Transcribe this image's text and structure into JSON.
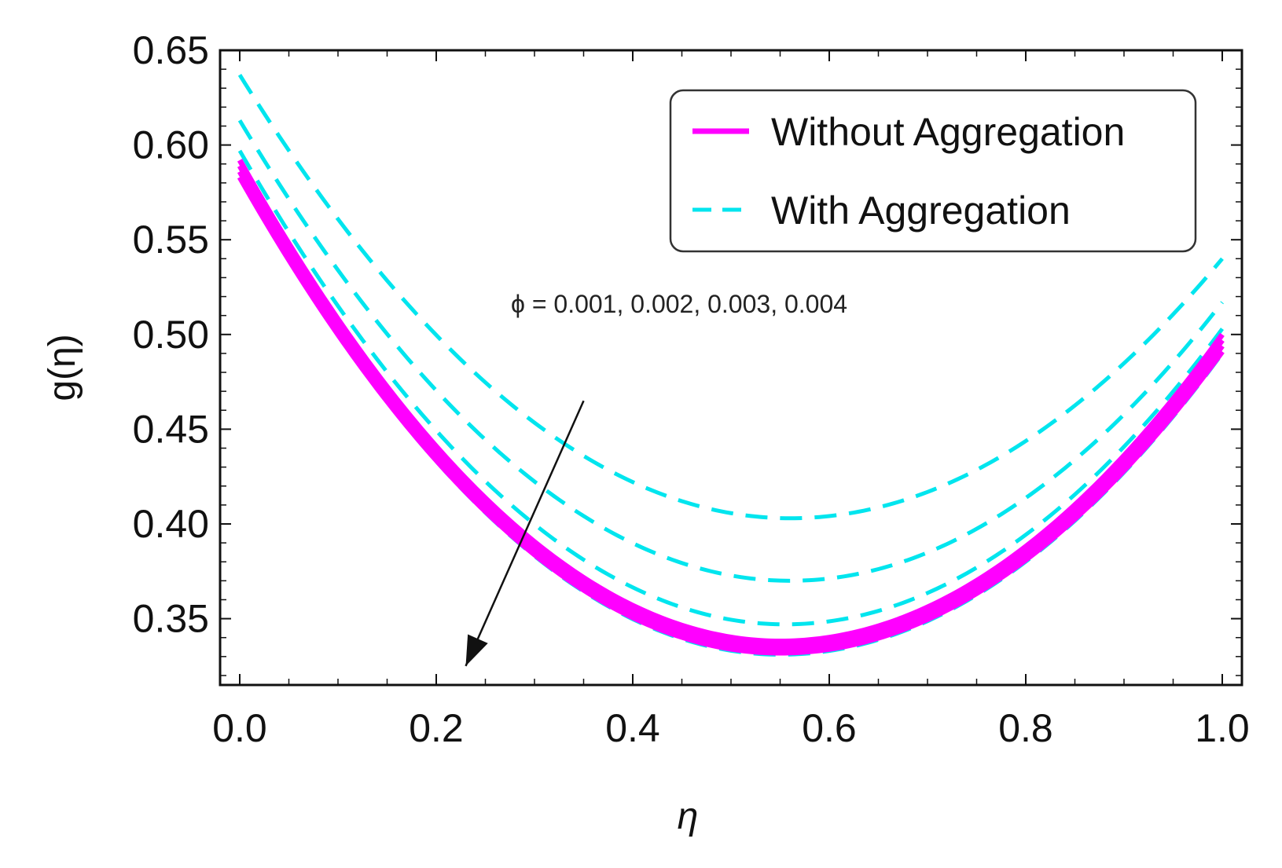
{
  "chart_data": {
    "type": "line",
    "title": "",
    "xlabel": "η",
    "ylabel": "g(η)",
    "xlim": [
      0.0,
      1.0
    ],
    "ylim": [
      0.315,
      0.65
    ],
    "xticks": [
      "0.0",
      "0.2",
      "0.4",
      "0.6",
      "0.8",
      "1.0"
    ],
    "yticks": [
      "0.35",
      "0.40",
      "0.45",
      "0.50",
      "0.55",
      "0.60",
      "0.65"
    ],
    "grid": false,
    "legend_position": "top-right",
    "legend": [
      {
        "label": "Without Aggregation",
        "style": "solid",
        "color": "#ff00ff"
      },
      {
        "label": "With Aggregation",
        "style": "dashed",
        "color": "#00e5ee"
      }
    ],
    "annotation": {
      "text": "ϕ = 0.001, 0.002, 0.003, 0.004",
      "arrow_from": [
        0.35,
        0.465
      ],
      "arrow_to": [
        0.23,
        0.325
      ]
    },
    "series": [
      {
        "name": "Without Aggregation, ϕ = 0.001",
        "style": "solid",
        "color": "#ff00ff",
        "y0": 0.592,
        "ymin": 0.338,
        "xmin": 0.55,
        "y1": 0.5
      },
      {
        "name": "Without Aggregation, ϕ = 0.002",
        "style": "solid",
        "color": "#ff00ff",
        "y0": 0.589,
        "ymin": 0.336,
        "xmin": 0.55,
        "y1": 0.497
      },
      {
        "name": "Without Aggregation, ϕ = 0.003",
        "style": "solid",
        "color": "#ff00ff",
        "y0": 0.586,
        "ymin": 0.334,
        "xmin": 0.55,
        "y1": 0.494
      },
      {
        "name": "Without Aggregation, ϕ = 0.004",
        "style": "solid",
        "color": "#ff00ff",
        "y0": 0.583,
        "ymin": 0.332,
        "xmin": 0.55,
        "y1": 0.491
      },
      {
        "name": "With Aggregation, ϕ = 0.001",
        "style": "dashed",
        "color": "#00e5ee",
        "y0": 0.637,
        "ymin": 0.403,
        "xmin": 0.56,
        "y1": 0.54
      },
      {
        "name": "With Aggregation, ϕ = 0.002",
        "style": "dashed",
        "color": "#00e5ee",
        "y0": 0.613,
        "ymin": 0.37,
        "xmin": 0.56,
        "y1": 0.517
      },
      {
        "name": "With Aggregation, ϕ = 0.003",
        "style": "dashed",
        "color": "#00e5ee",
        "y0": 0.597,
        "ymin": 0.347,
        "xmin": 0.555,
        "y1": 0.503
      },
      {
        "name": "With Aggregation, ϕ = 0.004",
        "style": "dashed",
        "color": "#00e5ee",
        "y0": 0.583,
        "ymin": 0.331,
        "xmin": 0.55,
        "y1": 0.49
      }
    ]
  }
}
